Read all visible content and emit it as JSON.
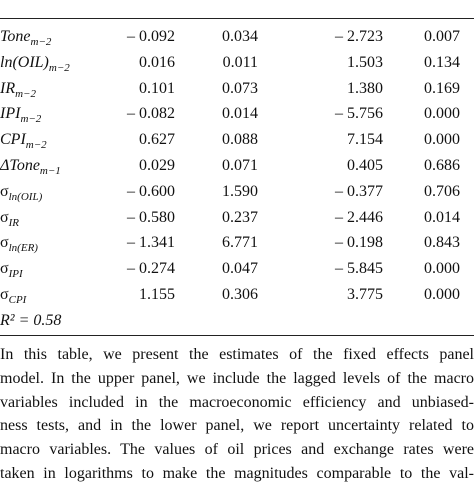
{
  "table": {
    "rows": [
      {
        "label": "Tone",
        "sub": "m−2",
        "cells": [
          "– 0.092",
          "0.034",
          "– 2.723",
          "0.007"
        ]
      },
      {
        "label": "ln(OIL)",
        "sub": "m−2",
        "cells": [
          "0.016",
          "0.011",
          "1.503",
          "0.134"
        ]
      },
      {
        "label": "IR",
        "sub": "m−2",
        "cells": [
          "0.101",
          "0.073",
          "1.380",
          "0.169"
        ]
      },
      {
        "label": "IPI",
        "sub": "m−2",
        "cells": [
          "– 0.082",
          "0.014",
          "– 5.756",
          "0.000"
        ]
      },
      {
        "label": "CPI",
        "sub": "m−2",
        "cells": [
          "0.627",
          "0.088",
          "7.154",
          "0.000"
        ]
      },
      {
        "label": "ΔTone",
        "sub": "m−1",
        "cells": [
          "0.029",
          "0.071",
          "0.405",
          "0.686"
        ]
      },
      {
        "label": "σ",
        "sub": "ln(OIL)",
        "cells": [
          "– 0.600",
          "1.590",
          "– 0.377",
          "0.706"
        ]
      },
      {
        "label": "σ",
        "sub": "IR",
        "cells": [
          "– 0.580",
          "0.237",
          "– 2.446",
          "0.014"
        ]
      },
      {
        "label": "σ",
        "sub": "ln(ER)",
        "cells": [
          "– 1.341",
          "6.771",
          "– 0.198",
          "0.843"
        ]
      },
      {
        "label": "σ",
        "sub": "IPI",
        "cells": [
          "– 0.274",
          "0.047",
          "– 5.845",
          "0.000"
        ]
      },
      {
        "label": "σ",
        "sub": "CPI",
        "cells": [
          "1.155",
          "0.306",
          "3.775",
          "0.000"
        ]
      }
    ],
    "r_squared": "R² = 0.58"
  },
  "note": {
    "lines": [
      "In this table, we present the estimates of the fixed effects panel",
      "model. In the upper panel, we include the lagged levels of the macro",
      "variables included in the macroeconomic efficiency and unbiased-",
      "ness tests, and in the lower panel, we report uncertainty related to",
      "macro variables. The values of oil prices and exchange rates were",
      "taken in logarithms to make the magnitudes comparable to the val-"
    ]
  }
}
